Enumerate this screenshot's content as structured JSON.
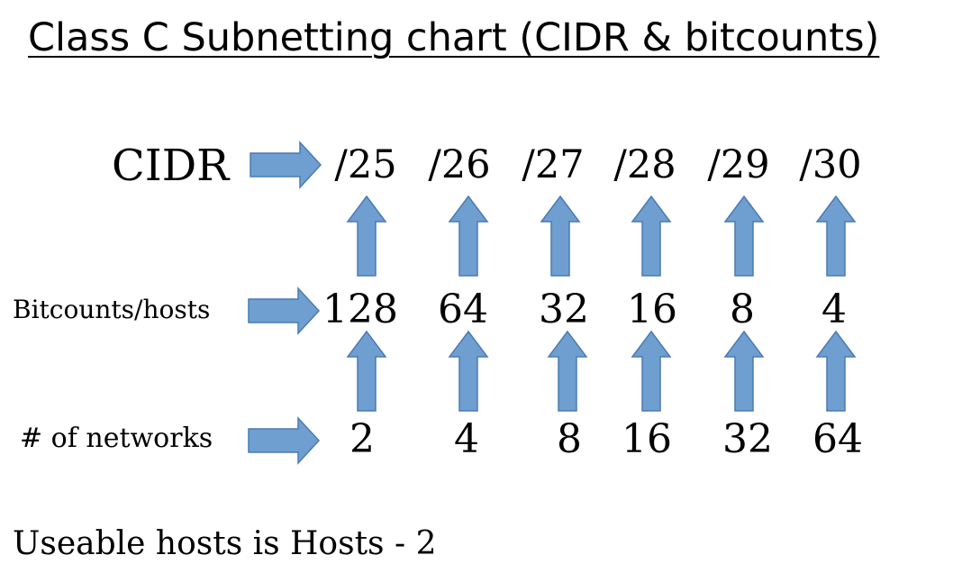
{
  "title": "Class C Subnetting chart (CIDR & bitcounts)",
  "arrow_color": "#6f9fd1",
  "arrow_stroke": "#4a7ab2",
  "rows": {
    "cidr": {
      "label": "CIDR",
      "values": [
        "/25",
        "/26",
        "/27",
        "/28",
        "/29",
        "/30"
      ]
    },
    "bitcounts": {
      "label": "Bitcounts/hosts",
      "values": [
        "128",
        "64",
        "32",
        "16",
        "8",
        "4"
      ]
    },
    "networks": {
      "label": "# of networks",
      "values": [
        "2",
        "4",
        "8",
        "16",
        "32",
        "64"
      ]
    }
  },
  "footer": "Useable hosts is Hosts - 2"
}
